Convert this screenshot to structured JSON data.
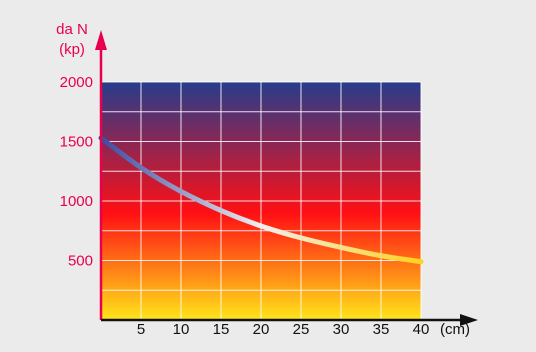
{
  "colors": {
    "background": "#ebebeb",
    "axis": "#e8004f",
    "y_tick_labels": "#e8004f",
    "x_tick_labels": "#111111",
    "grid": "#ffffff",
    "gradient_top": "#263c8c",
    "gradient_mid": "#ff0f14",
    "gradient_bottom": "#ffe619",
    "curve_start": "#3d4aa0",
    "curve_mid": "#f2eef0",
    "curve_end": "#ffd21e"
  },
  "chart_data": {
    "type": "line",
    "title": "",
    "ylabel_line1": "da N",
    "ylabel_line2": "(kp)",
    "xlabel": "(cm)",
    "xlim": [
      0,
      40
    ],
    "ylim": [
      0,
      2000
    ],
    "x_ticks": [
      5,
      10,
      15,
      20,
      25,
      30,
      35,
      40
    ],
    "y_ticks": [
      500,
      1000,
      1500,
      2000
    ],
    "grid": true,
    "background": "vertical gradient blue-red-yellow",
    "series": [
      {
        "x": [
          0,
          5,
          10,
          15,
          20,
          25,
          30,
          35,
          40
        ],
        "values": [
          1530,
          1280,
          1080,
          920,
          790,
          690,
          610,
          540,
          490
        ]
      }
    ]
  }
}
